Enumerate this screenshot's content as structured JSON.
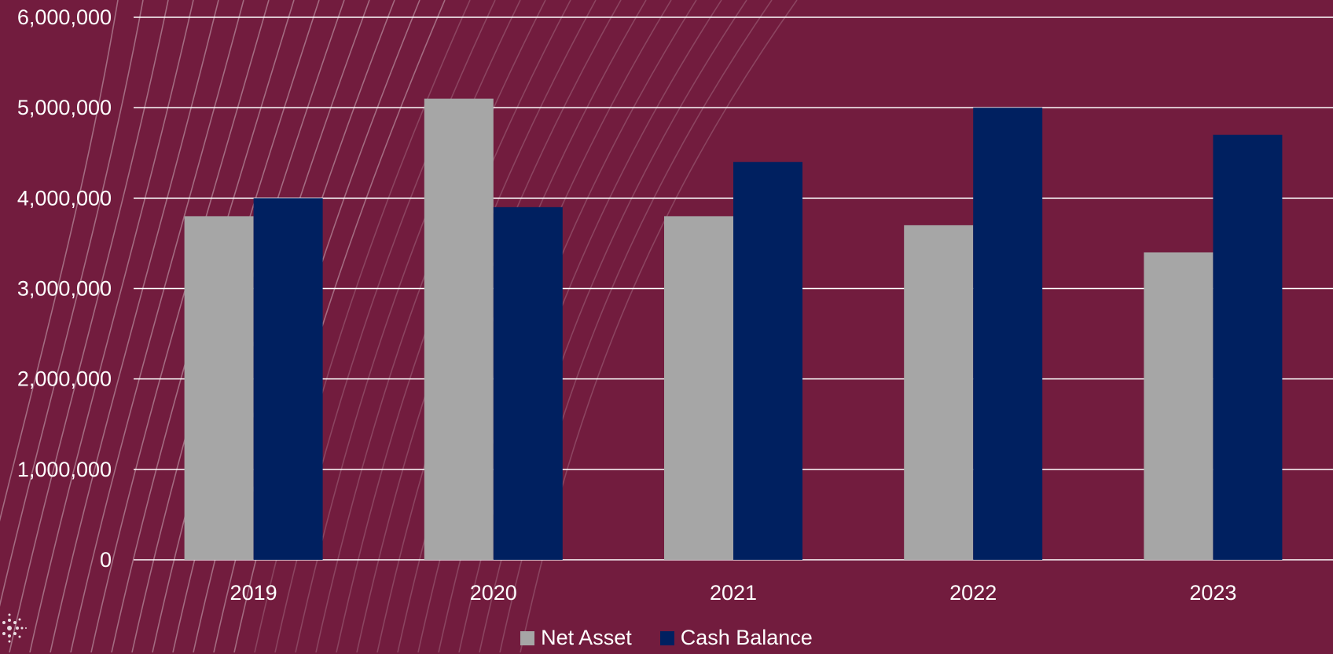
{
  "colors": {
    "background": "#721c3e",
    "net_asset": "#a6a6a6",
    "cash_balance": "#002060",
    "gridline": "#ffffff",
    "text": "#ffffff"
  },
  "chart_data": {
    "type": "bar",
    "categories": [
      "2019",
      "2020",
      "2021",
      "2022",
      "2023"
    ],
    "series": [
      {
        "name": "Net Asset",
        "color": "#a6a6a6",
        "values": [
          3800000,
          5100000,
          3800000,
          3700000,
          3400000
        ]
      },
      {
        "name": "Cash Balance",
        "color": "#002060",
        "values": [
          4000000,
          3900000,
          4400000,
          5000000,
          4700000
        ]
      }
    ],
    "yticks": [
      "0",
      "1,000,000",
      "2,000,000",
      "3,000,000",
      "4,000,000",
      "5,000,000",
      "6,000,000"
    ],
    "ylim": [
      0,
      6000000
    ],
    "grid": true,
    "legend_position": "bottom"
  },
  "legend": [
    {
      "label": "Net Asset",
      "color": "#a6a6a6"
    },
    {
      "label": "Cash Balance",
      "color": "#002060"
    }
  ]
}
